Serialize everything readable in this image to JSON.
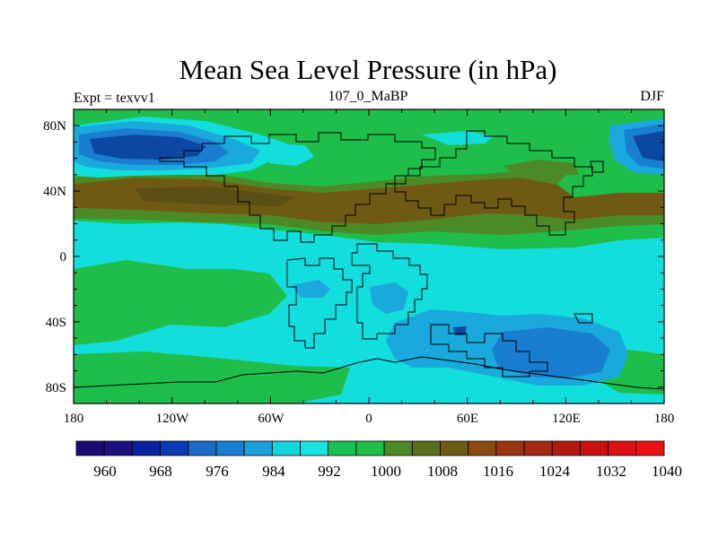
{
  "title": "Mean Sea Level Pressure (in hPa)",
  "left_label": "Expt = texvv1",
  "center_label": "107_0_MaBP",
  "right_label": "DJF",
  "x_ticks": [
    "180",
    "120W",
    "60W",
    "0",
    "60E",
    "120E",
    "180"
  ],
  "y_ticks": [
    "80N",
    "40N",
    "0",
    "40S",
    "80S"
  ],
  "colorbar_labels": [
    "960",
    "968",
    "976",
    "984",
    "992",
    "1000",
    "1008",
    "1016",
    "1024",
    "1032",
    "1040"
  ],
  "colorbar_colors": [
    "#1a0b73",
    "#1e1080",
    "#0a22a0",
    "#0a3ab8",
    "#1a6bc8",
    "#1a7ed0",
    "#1aa0da",
    "#12d8dc",
    "#18e3e3",
    "#19c152",
    "#1fbe4b",
    "#4c8a25",
    "#5a6f1a",
    "#6f5a14",
    "#8a4a10",
    "#9a3510",
    "#a52810",
    "#b21a10",
    "#cc1010",
    "#e01010",
    "#ee1010"
  ],
  "map_colors": {
    "ocean_base": "#12dede",
    "low_light": "#1aa9dc",
    "low_mid": "#1a7ed0",
    "low_dark": "#0d47a1",
    "mid_green": "#1fbe4b",
    "dark_green": "#4c8a25",
    "olive": "#6f5a14",
    "coast": "#000000"
  }
}
